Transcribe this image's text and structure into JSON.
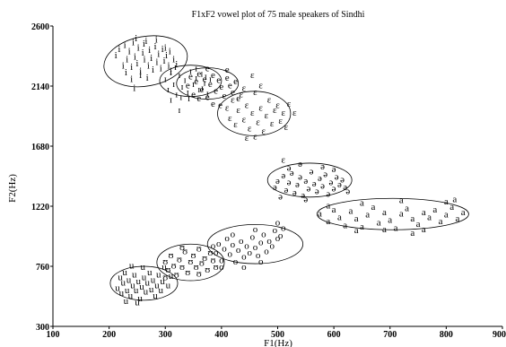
{
  "chart_data": {
    "type": "scatter",
    "title": "F1xF2 vowel plot of 75 male speakers of Sindhi",
    "xlabel": "F1(Hz)",
    "ylabel": "F2(Hz)",
    "xlim": [
      100,
      900
    ],
    "ylim": [
      300,
      2600
    ],
    "x_ticks": [
      "100",
      "200",
      "300",
      "400",
      "500",
      "600",
      "700",
      "800",
      "900"
    ],
    "y_ticks": [
      "300",
      "760",
      "1220",
      "1680",
      "2140",
      "2600"
    ],
    "grid": false,
    "series": [
      {
        "name": "i",
        "ellipse": {
          "cx": 265,
          "cy": 2330,
          "rx": 75,
          "ry": 190,
          "angle": -10
        },
        "points": [
          [
            212,
            2380
          ],
          [
            218,
            2430
          ],
          [
            225,
            2300
          ],
          [
            228,
            2460
          ],
          [
            232,
            2350
          ],
          [
            236,
            2410
          ],
          [
            240,
            2290
          ],
          [
            243,
            2480
          ],
          [
            246,
            2370
          ],
          [
            250,
            2320
          ],
          [
            252,
            2440
          ],
          [
            256,
            2260
          ],
          [
            260,
            2400
          ],
          [
            263,
            2350
          ],
          [
            266,
            2490
          ],
          [
            270,
            2300
          ],
          [
            272,
            2420
          ],
          [
            275,
            2360
          ],
          [
            278,
            2270
          ],
          [
            282,
            2450
          ],
          [
            285,
            2330
          ],
          [
            288,
            2390
          ],
          [
            292,
            2280
          ],
          [
            295,
            2430
          ],
          [
            298,
            2340
          ],
          [
            302,
            2380
          ],
          [
            306,
            2300
          ],
          [
            310,
            2260
          ],
          [
            315,
            2350
          ],
          [
            320,
            2310
          ],
          [
            240,
            2200
          ],
          [
            245,
            2130
          ],
          [
            256,
            2230
          ],
          [
            268,
            2210
          ],
          [
            230,
            2250
          ],
          [
            300,
            2440
          ],
          [
            308,
            2410
          ],
          [
            262,
            2470
          ],
          [
            248,
            2510
          ],
          [
            284,
            2500
          ]
        ]
      },
      {
        "name": "ɪ",
        "ellipse": {
          "cx": 345,
          "cy": 2180,
          "rx": 55,
          "ry": 120,
          "angle": 0
        },
        "points": [
          [
            300,
            2200
          ],
          [
            305,
            2120
          ],
          [
            310,
            2250
          ],
          [
            315,
            2160
          ],
          [
            320,
            2080
          ],
          [
            325,
            2230
          ],
          [
            330,
            2140
          ],
          [
            335,
            2190
          ],
          [
            340,
            2100
          ],
          [
            345,
            2260
          ],
          [
            350,
            2160
          ],
          [
            355,
            2210
          ],
          [
            360,
            2120
          ],
          [
            365,
            2240
          ],
          [
            370,
            2170
          ],
          [
            375,
            2090
          ],
          [
            380,
            2200
          ],
          [
            318,
            2290
          ],
          [
            328,
            2060
          ],
          [
            342,
            2050
          ],
          [
            355,
            2280
          ],
          [
            366,
            2130
          ],
          [
            372,
            2220
          ],
          [
            310,
            2040
          ],
          [
            325,
            1960
          ]
        ]
      },
      {
        "name": "e",
        "ellipse": {
          "cx": 375,
          "cy": 2160,
          "rx": 55,
          "ry": 120,
          "angle": 0
        },
        "points": [
          [
            340,
            2150
          ],
          [
            345,
            2220
          ],
          [
            350,
            2080
          ],
          [
            355,
            2180
          ],
          [
            360,
            2240
          ],
          [
            365,
            2120
          ],
          [
            370,
            2200
          ],
          [
            375,
            2060
          ],
          [
            380,
            2160
          ],
          [
            385,
            2230
          ],
          [
            390,
            2110
          ],
          [
            395,
            2190
          ],
          [
            400,
            2140
          ],
          [
            405,
            2070
          ],
          [
            410,
            2210
          ],
          [
            415,
            2150
          ],
          [
            420,
            2100
          ],
          [
            425,
            2180
          ],
          [
            430,
            2050
          ],
          [
            398,
            2000
          ],
          [
            385,
            2010
          ],
          [
            410,
            2270
          ],
          [
            360,
            2050
          ],
          [
            375,
            2280
          ]
        ]
      },
      {
        "name": "ɛ",
        "ellipse": {
          "cx": 458,
          "cy": 1930,
          "rx": 65,
          "ry": 170,
          "angle": 0
        },
        "points": [
          [
            410,
            1980
          ],
          [
            415,
            1900
          ],
          [
            420,
            2040
          ],
          [
            425,
            1850
          ],
          [
            430,
            1960
          ],
          [
            435,
            2080
          ],
          [
            440,
            1890
          ],
          [
            445,
            2000
          ],
          [
            450,
            1820
          ],
          [
            455,
            1940
          ],
          [
            460,
            2100
          ],
          [
            465,
            1870
          ],
          [
            470,
            1980
          ],
          [
            475,
            1800
          ],
          [
            480,
            1920
          ],
          [
            485,
            2040
          ],
          [
            490,
            1860
          ],
          [
            495,
            1960
          ],
          [
            500,
            2000
          ],
          [
            505,
            1880
          ],
          [
            510,
            1940
          ],
          [
            520,
            2010
          ],
          [
            515,
            1830
          ],
          [
            445,
            1750
          ],
          [
            460,
            1760
          ],
          [
            470,
            2150
          ],
          [
            440,
            2130
          ],
          [
            530,
            1940
          ],
          [
            510,
            1580
          ],
          [
            455,
            2230
          ]
        ]
      },
      {
        "name": "ə",
        "ellipse": {
          "cx": 557,
          "cy": 1420,
          "rx": 75,
          "ry": 130,
          "angle": 0
        },
        "points": [
          [
            495,
            1370
          ],
          [
            500,
            1420
          ],
          [
            505,
            1300
          ],
          [
            510,
            1460
          ],
          [
            515,
            1350
          ],
          [
            520,
            1410
          ],
          [
            525,
            1480
          ],
          [
            530,
            1330
          ],
          [
            535,
            1390
          ],
          [
            540,
            1450
          ],
          [
            545,
            1310
          ],
          [
            550,
            1420
          ],
          [
            555,
            1360
          ],
          [
            560,
            1490
          ],
          [
            565,
            1400
          ],
          [
            570,
            1340
          ],
          [
            575,
            1440
          ],
          [
            580,
            1380
          ],
          [
            585,
            1470
          ],
          [
            590,
            1320
          ],
          [
            595,
            1410
          ],
          [
            600,
            1360
          ],
          [
            605,
            1450
          ],
          [
            610,
            1390
          ],
          [
            615,
            1430
          ],
          [
            620,
            1370
          ],
          [
            625,
            1340
          ],
          [
            550,
            1280
          ],
          [
            540,
            1550
          ],
          [
            580,
            1530
          ],
          [
            520,
            1520
          ],
          [
            600,
            1510
          ]
        ]
      },
      {
        "name": "a",
        "ellipse": {
          "cx": 705,
          "cy": 1160,
          "rx": 135,
          "ry": 120,
          "angle": 0
        },
        "points": [
          [
            575,
            1170
          ],
          [
            590,
            1110
          ],
          [
            600,
            1200
          ],
          [
            610,
            1140
          ],
          [
            620,
            1080
          ],
          [
            630,
            1190
          ],
          [
            640,
            1130
          ],
          [
            650,
            1070
          ],
          [
            660,
            1160
          ],
          [
            670,
            1220
          ],
          [
            680,
            1100
          ],
          [
            690,
            1180
          ],
          [
            700,
            1120
          ],
          [
            710,
            1060
          ],
          [
            720,
            1170
          ],
          [
            730,
            1210
          ],
          [
            740,
            1130
          ],
          [
            750,
            1090
          ],
          [
            760,
            1180
          ],
          [
            770,
            1140
          ],
          [
            780,
            1200
          ],
          [
            790,
            1110
          ],
          [
            800,
            1160
          ],
          [
            810,
            1220
          ],
          [
            820,
            1130
          ],
          [
            830,
            1180
          ],
          [
            640,
            1040
          ],
          [
            690,
            1050
          ],
          [
            720,
            1270
          ],
          [
            760,
            1050
          ],
          [
            800,
            1260
          ],
          [
            590,
            1230
          ],
          [
            650,
            1250
          ],
          [
            740,
            1020
          ],
          [
            815,
            1280
          ]
        ]
      },
      {
        "name": "o",
        "ellipse": {
          "cx": 460,
          "cy": 930,
          "rx": 85,
          "ry": 150,
          "angle": 0
        },
        "points": [
          [
            390,
            870
          ],
          [
            395,
            940
          ],
          [
            400,
            810
          ],
          [
            405,
            900
          ],
          [
            410,
            980
          ],
          [
            415,
            860
          ],
          [
            420,
            930
          ],
          [
            425,
            800
          ],
          [
            430,
            890
          ],
          [
            435,
            960
          ],
          [
            440,
            840
          ],
          [
            445,
            920
          ],
          [
            450,
            870
          ],
          [
            455,
            990
          ],
          [
            460,
            910
          ],
          [
            465,
            850
          ],
          [
            470,
            950
          ],
          [
            475,
            1010
          ],
          [
            480,
            880
          ],
          [
            485,
            960
          ],
          [
            490,
            920
          ],
          [
            495,
            1040
          ],
          [
            500,
            980
          ],
          [
            505,
            1000
          ],
          [
            510,
            1060
          ],
          [
            385,
            920
          ],
          [
            420,
            1010
          ],
          [
            470,
            800
          ],
          [
            500,
            1100
          ],
          [
            440,
            760
          ],
          [
            460,
            1050
          ],
          [
            400,
            760
          ]
        ]
      },
      {
        "name": "ʊ",
        "ellipse": {
          "cx": 345,
          "cy": 790,
          "rx": 60,
          "ry": 140,
          "angle": 0
        },
        "points": [
          [
            300,
            800
          ],
          [
            305,
            740
          ],
          [
            310,
            850
          ],
          [
            315,
            770
          ],
          [
            320,
            700
          ],
          [
            325,
            820
          ],
          [
            330,
            760
          ],
          [
            335,
            880
          ],
          [
            340,
            720
          ],
          [
            345,
            800
          ],
          [
            350,
            850
          ],
          [
            355,
            760
          ],
          [
            360,
            900
          ],
          [
            365,
            790
          ],
          [
            370,
            830
          ],
          [
            375,
            740
          ],
          [
            380,
            870
          ],
          [
            385,
            810
          ],
          [
            390,
            760
          ],
          [
            300,
            680
          ],
          [
            330,
            910
          ],
          [
            360,
            710
          ]
        ]
      },
      {
        "name": "u",
        "ellipse": {
          "cx": 262,
          "cy": 630,
          "rx": 60,
          "ry": 130,
          "angle": 0
        },
        "points": [
          [
            215,
            600
          ],
          [
            220,
            680
          ],
          [
            222,
            560
          ],
          [
            225,
            640
          ],
          [
            228,
            720
          ],
          [
            232,
            580
          ],
          [
            235,
            660
          ],
          [
            238,
            540
          ],
          [
            242,
            620
          ],
          [
            245,
            700
          ],
          [
            248,
            580
          ],
          [
            252,
            650
          ],
          [
            255,
            520
          ],
          [
            258,
            610
          ],
          [
            262,
            680
          ],
          [
            265,
            570
          ],
          [
            268,
            640
          ],
          [
            272,
            720
          ],
          [
            275,
            590
          ],
          [
            278,
            660
          ],
          [
            282,
            540
          ],
          [
            285,
            620
          ],
          [
            288,
            700
          ],
          [
            292,
            580
          ],
          [
            295,
            650
          ],
          [
            298,
            760
          ],
          [
            305,
            620
          ],
          [
            310,
            690
          ],
          [
            230,
            500
          ],
          [
            260,
            760
          ],
          [
            250,
            490
          ],
          [
            240,
            770
          ]
        ]
      }
    ]
  }
}
